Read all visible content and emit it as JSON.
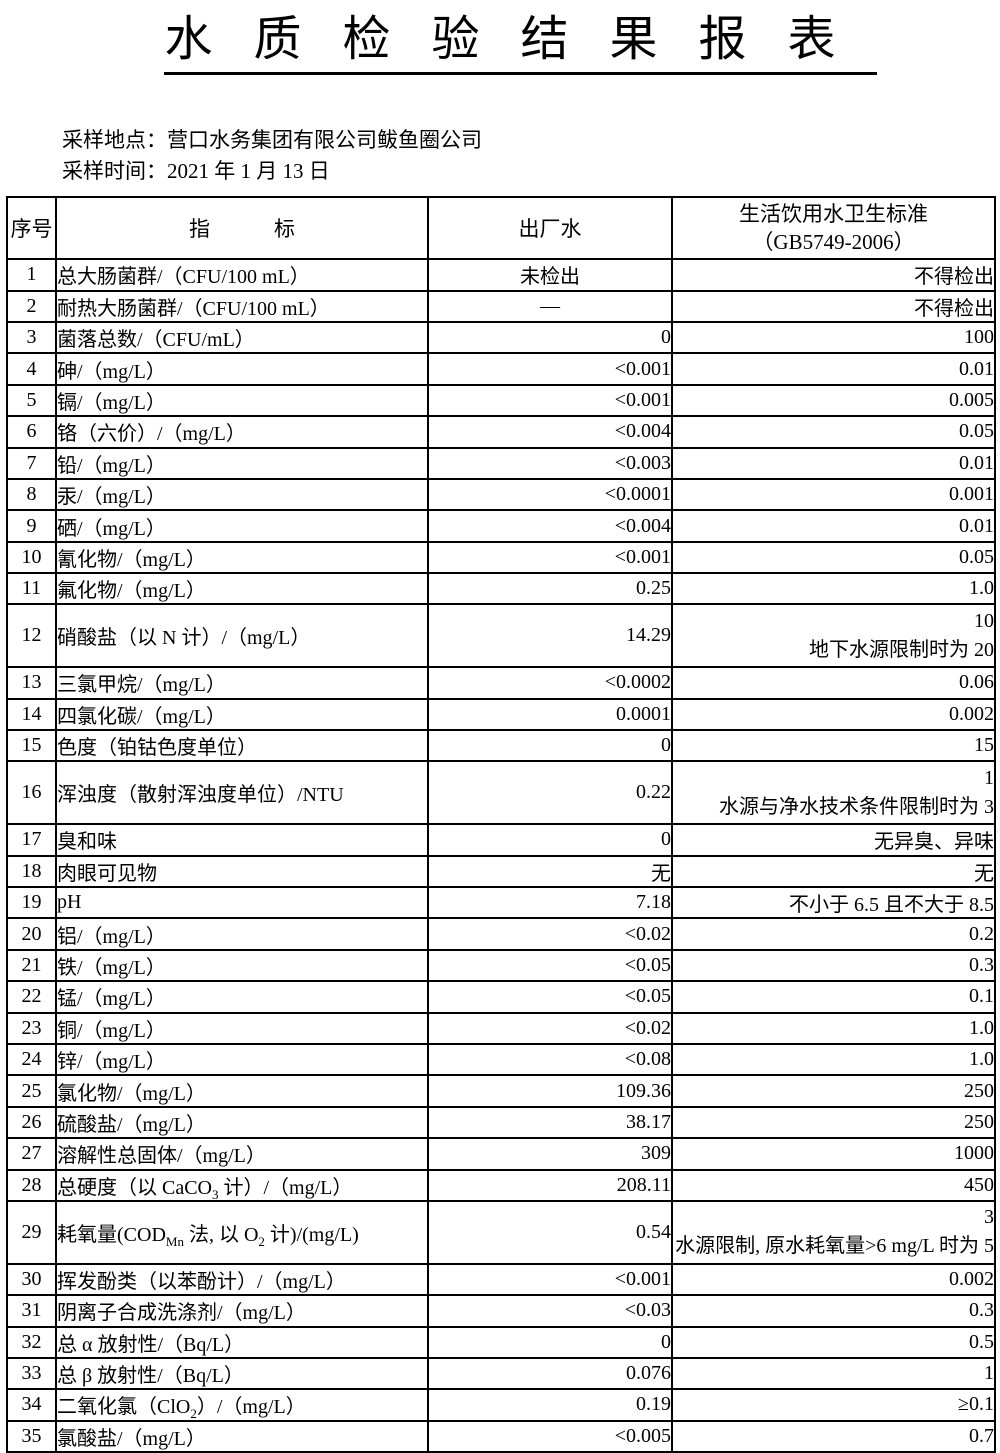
{
  "page": {
    "title": "水质检验结果报表"
  },
  "meta": {
    "location_label": "采样地点：",
    "location_value": "营口水务集团有限公司鲅鱼圈公司",
    "time_label": "采样时间：",
    "time_value": "2021 年 1 月 13 日"
  },
  "colors": {
    "text": "#000000",
    "background": "#ffffff",
    "border": "#000000"
  },
  "table": {
    "headers": {
      "no": "序号",
      "indicator": "指标",
      "factory": "出厂水",
      "standard_line1": "生活饮用水卫生标准",
      "standard_line2": "（GB5749-2006）"
    },
    "rows": [
      {
        "no": "1",
        "indicator": "总大肠菌群/（CFU/100 mL）",
        "factory": "未检出",
        "factory_align": "center",
        "standard": "不得检出"
      },
      {
        "no": "2",
        "indicator": "耐热大肠菌群/（CFU/100 mL）",
        "factory": "—",
        "factory_align": "center",
        "standard": "不得检出"
      },
      {
        "no": "3",
        "indicator": "菌落总数/（CFU/mL）",
        "factory": "0",
        "standard": "100"
      },
      {
        "no": "4",
        "indicator": "砷/（mg/L）",
        "factory": "<0.001",
        "standard": "0.01"
      },
      {
        "no": "5",
        "indicator": "镉/（mg/L）",
        "factory": "<0.001",
        "standard": "0.005"
      },
      {
        "no": "6",
        "indicator": "铬（六价）/（mg/L）",
        "factory": "<0.004",
        "standard": "0.05"
      },
      {
        "no": "7",
        "indicator": "铅/（mg/L）",
        "factory": "<0.003",
        "standard": "0.01"
      },
      {
        "no": "8",
        "indicator": "汞/（mg/L）",
        "factory": "<0.0001",
        "standard": "0.001"
      },
      {
        "no": "9",
        "indicator": "硒/（mg/L）",
        "factory": "<0.004",
        "standard": "0.01"
      },
      {
        "no": "10",
        "indicator": "氰化物/（mg/L）",
        "factory": "<0.001",
        "standard": "0.05"
      },
      {
        "no": "11",
        "indicator": "氟化物/（mg/L）",
        "factory": "0.25",
        "standard": "1.0"
      },
      {
        "no": "12",
        "indicator": "硝酸盐（以 N 计）/（mg/L）",
        "factory": "14.29",
        "standard": "10",
        "standard_note": "地下水源限制时为 20",
        "tall": true
      },
      {
        "no": "13",
        "indicator": "三氯甲烷/（mg/L）",
        "factory": "<0.0002",
        "standard": "0.06"
      },
      {
        "no": "14",
        "indicator": "四氯化碳/（mg/L）",
        "factory": "0.0001",
        "standard": "0.002"
      },
      {
        "no": "15",
        "indicator": "色度（铂钴色度单位）",
        "factory": "0",
        "standard": "15"
      },
      {
        "no": "16",
        "indicator": "浑浊度（散射浑浊度单位）/NTU",
        "factory": "0.22",
        "standard": "1",
        "standard_note": "水源与净水技术条件限制时为 3",
        "tall": true
      },
      {
        "no": "17",
        "indicator": "臭和味",
        "factory": "0",
        "standard": "无异臭、异味"
      },
      {
        "no": "18",
        "indicator": "肉眼可见物",
        "factory": "无",
        "standard": "无"
      },
      {
        "no": "19",
        "indicator": "pH",
        "factory": "7.18",
        "standard": "不小于 6.5 且不大于 8.5"
      },
      {
        "no": "20",
        "indicator": "铝/（mg/L）",
        "factory": "<0.02",
        "standard": "0.2"
      },
      {
        "no": "21",
        "indicator": "铁/（mg/L）",
        "factory": "<0.05",
        "standard": "0.3"
      },
      {
        "no": "22",
        "indicator": "锰/（mg/L）",
        "factory": "<0.05",
        "standard": "0.1"
      },
      {
        "no": "23",
        "indicator": "铜/（mg/L）",
        "factory": "<0.02",
        "standard": "1.0"
      },
      {
        "no": "24",
        "indicator": "锌/（mg/L）",
        "factory": "<0.08",
        "standard": "1.0"
      },
      {
        "no": "25",
        "indicator": "氯化物/（mg/L）",
        "factory": "109.36",
        "standard": "250"
      },
      {
        "no": "26",
        "indicator": "硫酸盐/（mg/L）",
        "factory": "38.17",
        "standard": "250"
      },
      {
        "no": "27",
        "indicator": "溶解性总固体/（mg/L）",
        "factory": "309",
        "standard": "1000"
      },
      {
        "no": "28",
        "indicator": "总硬度（以 CaCO_3_ 计）/（mg/L）",
        "factory": "208.11",
        "standard": "450"
      },
      {
        "no": "29",
        "indicator": "耗氧量(COD_Mn_ 法, 以 O_2_ 计)/(mg/L)",
        "factory": "0.54",
        "standard": "3",
        "standard_note": "水源限制, 原水耗氧量>6 mg/L 时为 5",
        "tall": true
      },
      {
        "no": "30",
        "indicator": "挥发酚类（以苯酚计）/（mg/L）",
        "factory": "<0.001",
        "standard": "0.002"
      },
      {
        "no": "31",
        "indicator": "阴离子合成洗涤剂/（mg/L）",
        "factory": "<0.03",
        "standard": "0.3"
      },
      {
        "no": "32",
        "indicator": "总 α 放射性/（Bq/L）",
        "factory": "0",
        "standard": "0.5"
      },
      {
        "no": "33",
        "indicator": "总 β 放射性/（Bq/L）",
        "factory": "0.076",
        "standard": "1"
      },
      {
        "no": "34",
        "indicator": "二氧化氯（ClO_2_）/（mg/L）",
        "factory": "0.19",
        "standard": "≥0.1"
      },
      {
        "no": "35",
        "indicator": "氯酸盐/（mg/L）",
        "factory": "<0.005",
        "standard": "0.7"
      }
    ]
  }
}
